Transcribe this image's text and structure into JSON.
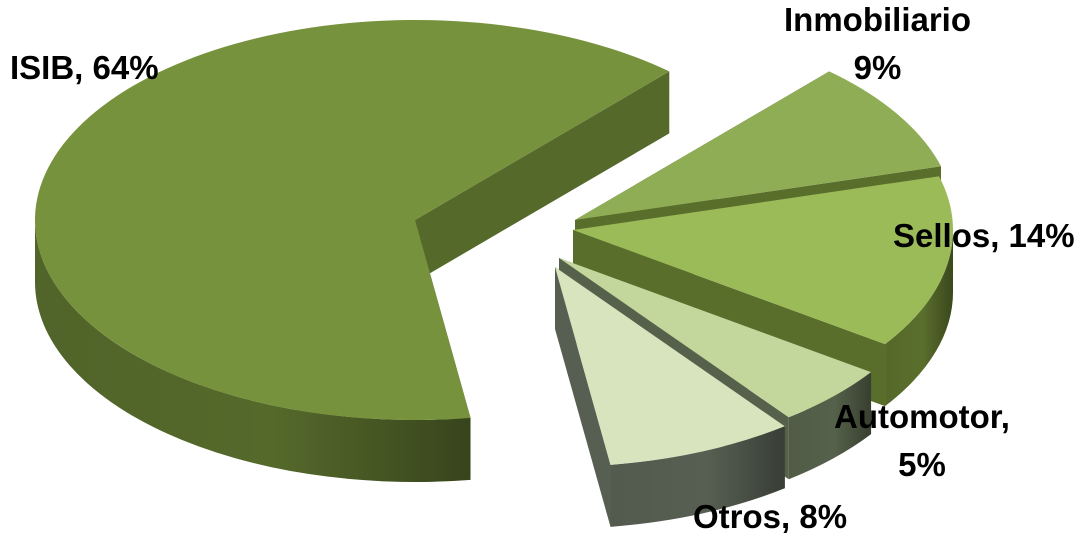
{
  "chart_data": {
    "type": "pie",
    "title": "",
    "style": "3d-exploded",
    "slices": [
      {
        "name": "ISIB",
        "value": 64,
        "label_lines": [
          "ISIB, 64%"
        ],
        "color_top": "#77923c",
        "color_side": "#55692b",
        "color_side_dark": "#3b4a1d"
      },
      {
        "name": "Inmobiliario",
        "value": 9,
        "label_lines": [
          "Inmobiliario",
          "9%"
        ],
        "color_top": "#8fad55",
        "color_side": "#5a6e2c",
        "color_side_dark": "#435322"
      },
      {
        "name": "Sellos",
        "value": 14,
        "label_lines": [
          "Sellos, 14%"
        ],
        "color_top": "#9bbb59",
        "color_side": "#5a6e2c",
        "color_side_dark": "#435322"
      },
      {
        "name": "Automotor",
        "value": 5,
        "label_lines": [
          "Automotor,",
          "5%"
        ],
        "color_top": "#c3d69b",
        "color_side": "#55614a",
        "color_side_dark": "#434c3b"
      },
      {
        "name": "Otros",
        "value": 8,
        "label_lines": [
          "Otros, 8%"
        ],
        "color_top": "#d7e4bd",
        "color_side": "#575f52",
        "color_side_dark": "#434a3f"
      }
    ]
  }
}
